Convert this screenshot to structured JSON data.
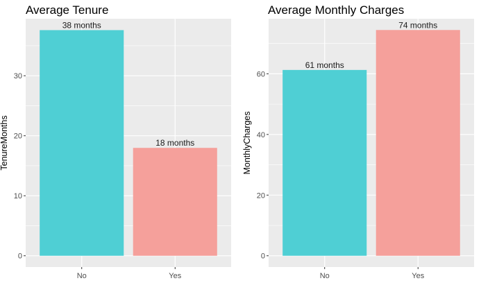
{
  "chart_data": [
    {
      "type": "bar",
      "title": "Average Tenure",
      "xlabel": "",
      "ylabel": "TenureMonths",
      "categories": [
        "No",
        "Yes"
      ],
      "values": [
        37.6,
        17.98
      ],
      "bar_labels": [
        "38 months",
        "18 months"
      ],
      "bar_colors": [
        "#4fcfd4",
        "#f5a09b"
      ],
      "ylim": [
        -1.88,
        39.5
      ],
      "yticks": [
        0,
        10,
        20,
        30
      ],
      "grid": true,
      "legend": "none",
      "panel_background": "#ebebeb"
    },
    {
      "type": "bar",
      "title": "Average Monthly Charges",
      "xlabel": "",
      "ylabel": "MonthlyCharges",
      "categories": [
        "No",
        "Yes"
      ],
      "values": [
        61.27,
        74.44
      ],
      "bar_labels": [
        "61 months",
        "74 months"
      ],
      "bar_colors": [
        "#4fcfd4",
        "#f5a09b"
      ],
      "ylim": [
        -3.72,
        78.16
      ],
      "yticks": [
        0,
        20,
        40,
        60
      ],
      "grid": true,
      "legend": "none",
      "panel_background": "#ebebeb"
    }
  ]
}
